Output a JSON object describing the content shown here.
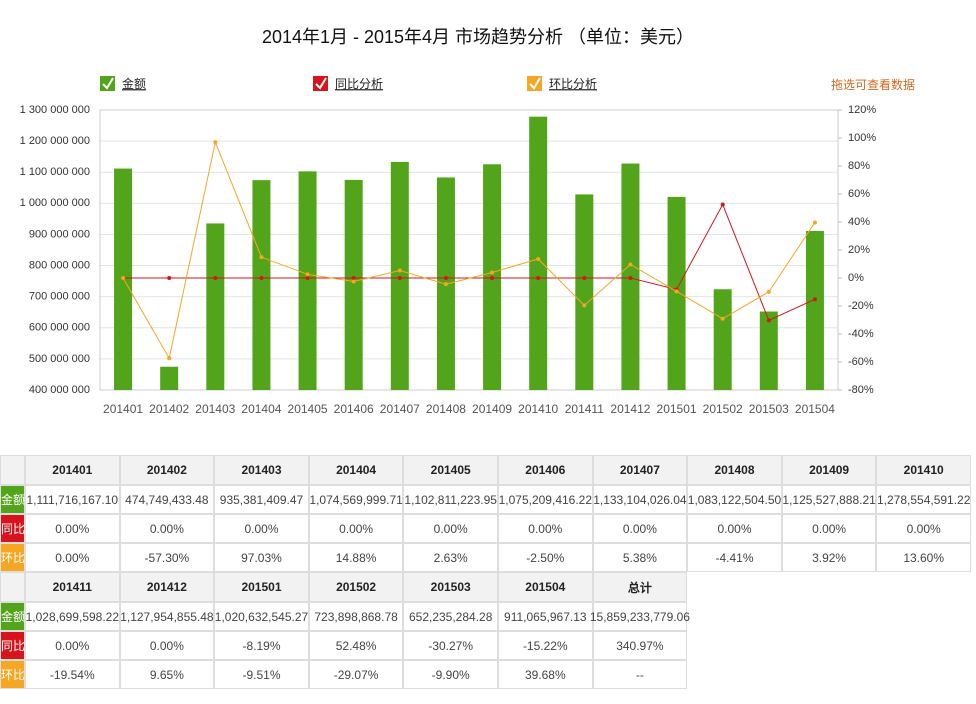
{
  "chart_data": {
    "type": "bar",
    "title": "2014年1月 - 2015年4月 市场趋势分析 （单位：美元）",
    "annotation": "拖选可查看数据",
    "categories": [
      "201401",
      "201402",
      "201403",
      "201404",
      "201405",
      "201406",
      "201407",
      "201408",
      "201409",
      "201410",
      "201411",
      "201412",
      "201501",
      "201502",
      "201503",
      "201504"
    ],
    "series": [
      {
        "name": "金额",
        "type": "bar",
        "color": "#52a51a",
        "values": [
          1111716167.1,
          474749433.48,
          935381409.47,
          1074569999.71,
          1102811223.95,
          1075209416.22,
          1133104026.04,
          1083122504.5,
          1125527888.21,
          1278554591.22,
          1028699598.22,
          1127954855.48,
          1020632545.27,
          723898868.78,
          652235284.28,
          911065967.13
        ],
        "value_labels": [
          "1,111,716,167.10",
          "474,749,433.48",
          "935,381,409.47",
          "1,074,569,999.71",
          "1,102,811,223.95",
          "1,075,209,416.22",
          "1,133,104,026.04",
          "1,083,122,504.50",
          "1,125,527,888.21",
          "1,278,554,591.22",
          "1,028,699,598.22",
          "1,127,954,855.48",
          "1,020,632,545.27",
          "723,898,868.78",
          "652,235,284.28",
          "911,065,967.13"
        ]
      },
      {
        "name": "同比分析",
        "type": "line",
        "axis": "y2",
        "color": "#d7141c",
        "values": [
          0,
          0,
          0,
          0,
          0,
          0,
          0,
          0,
          0,
          0,
          0,
          0,
          -8.19,
          52.48,
          -30.27,
          -15.22
        ],
        "value_labels": [
          "0.00%",
          "0.00%",
          "0.00%",
          "0.00%",
          "0.00%",
          "0.00%",
          "0.00%",
          "0.00%",
          "0.00%",
          "0.00%",
          "0.00%",
          "0.00%",
          "-8.19%",
          "52.48%",
          "-30.27%",
          "-15.22%"
        ]
      },
      {
        "name": "环比分析",
        "type": "line",
        "axis": "y2",
        "color": "#f5a623",
        "values": [
          0,
          -57.3,
          97.03,
          14.88,
          2.63,
          -2.5,
          5.38,
          -4.41,
          3.92,
          13.6,
          -19.54,
          9.65,
          -9.51,
          -29.07,
          -9.9,
          39.68
        ],
        "value_labels": [
          "0.00%",
          "-57.30%",
          "97.03%",
          "14.88%",
          "2.63%",
          "-2.50%",
          "5.38%",
          "-4.41%",
          "3.92%",
          "13.60%",
          "-19.54%",
          "9.65%",
          "-9.51%",
          "-29.07%",
          "-9.90%",
          "39.68%"
        ]
      }
    ],
    "ylim": [
      400000000,
      1300000000
    ],
    "yticks": [
      {
        "value": 400000000,
        "label": "400 000 000"
      },
      {
        "value": 500000000,
        "label": "500 000 000"
      },
      {
        "value": 600000000,
        "label": "600 000 000"
      },
      {
        "value": 700000000,
        "label": "700 000 000"
      },
      {
        "value": 800000000,
        "label": "800 000 000"
      },
      {
        "value": 900000000,
        "label": "900 000 000"
      },
      {
        "value": 1000000000,
        "label": "1 000 000 000"
      },
      {
        "value": 1100000000,
        "label": "1 100 000 000"
      },
      {
        "value": 1200000000,
        "label": "1 200 000 000"
      },
      {
        "value": 1300000000,
        "label": "1 300 000 000"
      }
    ],
    "y2lim": [
      -80,
      120
    ],
    "y2ticks": [
      {
        "value": -80,
        "label": "-80%"
      },
      {
        "value": -60,
        "label": "-60%"
      },
      {
        "value": -40,
        "label": "-40%"
      },
      {
        "value": -20,
        "label": "-20%"
      },
      {
        "value": 0,
        "label": "0%"
      },
      {
        "value": 20,
        "label": "20%"
      },
      {
        "value": 40,
        "label": "40%"
      },
      {
        "value": 60,
        "label": "60%"
      },
      {
        "value": 80,
        "label": "80%"
      },
      {
        "value": 100,
        "label": "100%"
      },
      {
        "value": 120,
        "label": "120%"
      }
    ],
    "grid": true
  },
  "table": {
    "row_labels": [
      "金额",
      "同比",
      "环比"
    ],
    "total_header": "总计",
    "totals": [
      "15,859,233,779.06",
      "340.97%",
      "--"
    ]
  }
}
